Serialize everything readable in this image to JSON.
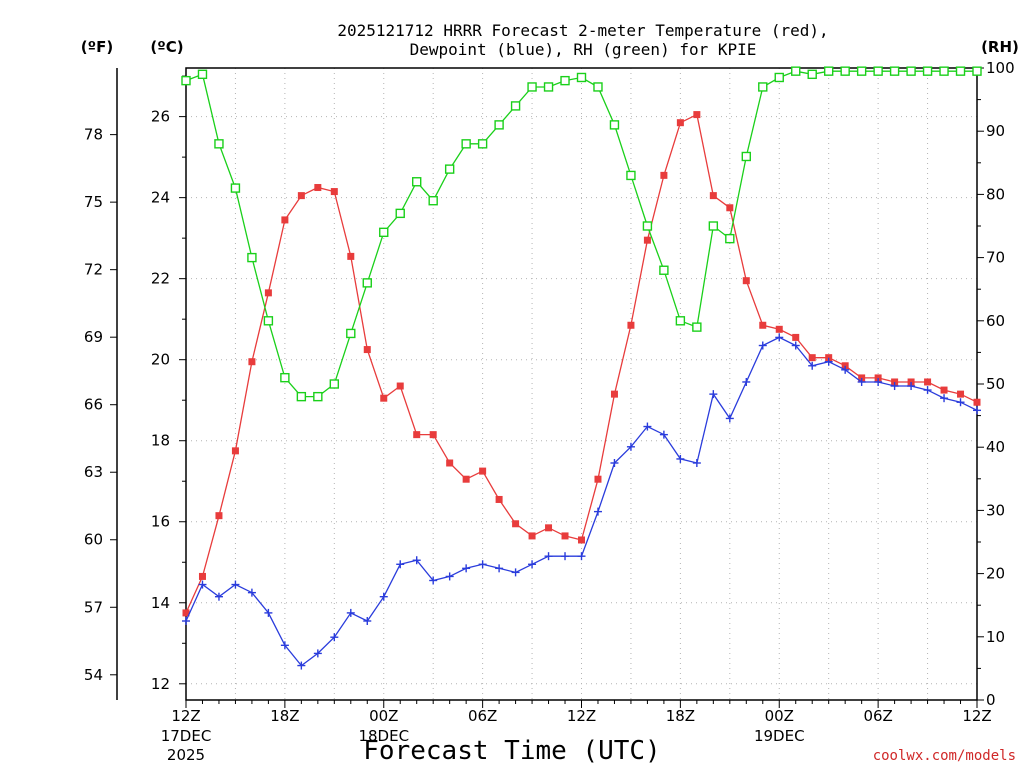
{
  "chart_data": {
    "type": "line",
    "title_line1": "2025121712 HRRR Forecast 2-meter Temperature (red),",
    "title_line2": "Dewpoint (blue), RH (green) for KPIE",
    "xlabel": "Forecast Time (UTC)",
    "credit": "coolwx.com/models",
    "left_axis_f_label": "(ºF)",
    "left_axis_c_label": "(ºC)",
    "right_axis_label": "(RH)",
    "hours_range": [
      0,
      48
    ],
    "celsius_range": [
      11.6,
      27.2
    ],
    "rh_range": [
      0,
      100
    ],
    "celsius_ticks": [
      "12",
      "14",
      "16",
      "18",
      "20",
      "22",
      "24",
      "26"
    ],
    "fahrenheit_ticks": [
      "54",
      "57",
      "60",
      "63",
      "66",
      "69",
      "72",
      "75",
      "78"
    ],
    "rh_ticks": [
      "0",
      "10",
      "20",
      "30",
      "40",
      "50",
      "60",
      "70",
      "80",
      "90",
      "100"
    ],
    "x_ticks": [
      {
        "hour": 0,
        "label": "12Z",
        "sub1": "17DEC",
        "sub2": "2025"
      },
      {
        "hour": 6,
        "label": "18Z",
        "sub1": "",
        "sub2": ""
      },
      {
        "hour": 12,
        "label": "00Z",
        "sub1": "18DEC",
        "sub2": ""
      },
      {
        "hour": 18,
        "label": "06Z",
        "sub1": "",
        "sub2": ""
      },
      {
        "hour": 24,
        "label": "12Z",
        "sub1": "",
        "sub2": ""
      },
      {
        "hour": 30,
        "label": "18Z",
        "sub1": "",
        "sub2": ""
      },
      {
        "hour": 36,
        "label": "00Z",
        "sub1": "19DEC",
        "sub2": ""
      },
      {
        "hour": 42,
        "label": "06Z",
        "sub1": "",
        "sub2": ""
      },
      {
        "hour": 48,
        "label": "12Z",
        "sub1": "",
        "sub2": ""
      }
    ],
    "series": [
      {
        "name": "Temperature",
        "unit": "C",
        "color": "#e83c3c",
        "marker": "filled-square",
        "values": [
          13.75,
          14.65,
          16.15,
          17.75,
          19.95,
          21.65,
          23.45,
          24.05,
          24.25,
          24.15,
          22.55,
          20.25,
          19.05,
          19.35,
          18.15,
          18.15,
          17.45,
          17.05,
          17.25,
          16.55,
          15.95,
          15.65,
          15.85,
          15.65,
          15.55,
          17.05,
          19.15,
          20.85,
          22.95,
          24.55,
          25.85,
          26.05,
          24.05,
          23.75,
          21.95,
          20.85,
          20.75,
          20.55,
          20.05,
          20.05,
          19.85,
          19.55,
          19.55,
          19.45,
          19.45,
          19.45,
          19.25,
          19.15,
          18.95
        ]
      },
      {
        "name": "Dewpoint",
        "unit": "C",
        "color": "#2a3cdc",
        "marker": "plus",
        "values": [
          13.55,
          14.45,
          14.15,
          14.45,
          14.25,
          13.75,
          12.95,
          12.45,
          12.75,
          13.15,
          13.75,
          13.55,
          14.15,
          14.95,
          15.05,
          14.55,
          14.65,
          14.85,
          14.95,
          14.85,
          14.75,
          14.95,
          15.15,
          15.15,
          15.15,
          16.25,
          17.45,
          17.85,
          18.35,
          18.15,
          17.55,
          17.45,
          19.15,
          18.55,
          19.45,
          20.35,
          20.55,
          20.35,
          19.85,
          19.95,
          19.75,
          19.45,
          19.45,
          19.35,
          19.35,
          19.25,
          19.05,
          18.95,
          18.75
        ]
      },
      {
        "name": "RH",
        "unit": "%",
        "color": "#1ad01a",
        "marker": "open-square",
        "values": [
          98,
          99,
          88,
          81,
          70,
          60,
          51,
          48,
          48,
          50,
          58,
          66,
          74,
          77,
          82,
          79,
          84,
          88,
          88,
          91,
          94,
          97,
          97,
          98,
          98.5,
          97,
          91,
          83,
          75,
          68,
          60,
          59,
          75,
          73,
          86,
          97,
          98.5,
          99.5,
          99,
          99.5,
          99.5,
          99.5,
          99.5,
          99.5,
          99.5,
          99.5,
          99.5,
          99.5,
          99.5
        ]
      }
    ]
  }
}
